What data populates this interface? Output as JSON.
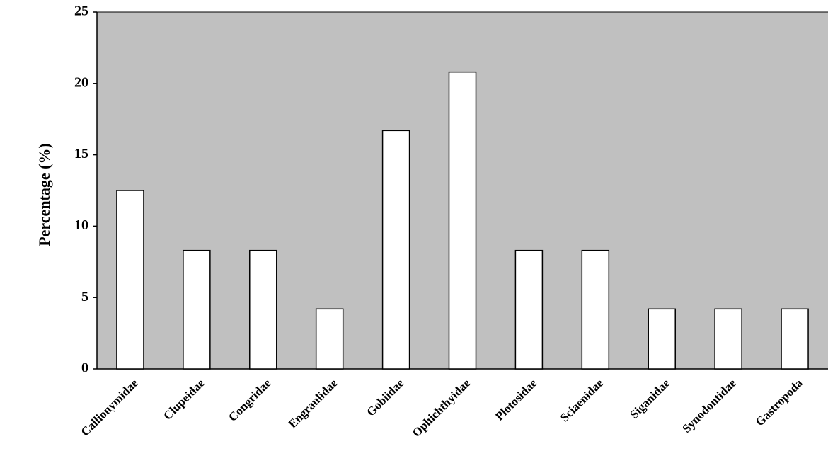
{
  "chart_data": {
    "type": "bar",
    "y_label": "Percentage (%)",
    "categories": [
      "Callionymidae",
      "Clupeidae",
      "Congridae",
      "Engraulidae",
      "Gobiidae",
      "Ophichthyidae",
      "Plotosidae",
      "Sciaenidae",
      "Siganidae",
      "Synodontidae",
      "Gastropoda"
    ],
    "values": [
      12.5,
      8.3,
      8.3,
      4.2,
      16.7,
      20.8,
      8.3,
      8.3,
      4.2,
      4.2,
      4.2
    ],
    "color": "#ffffff",
    "background": "#c0c0c0",
    "ylim": [
      0,
      25
    ],
    "yticks": [
      0,
      5,
      10,
      15,
      20,
      25
    ],
    "grid": false
  }
}
